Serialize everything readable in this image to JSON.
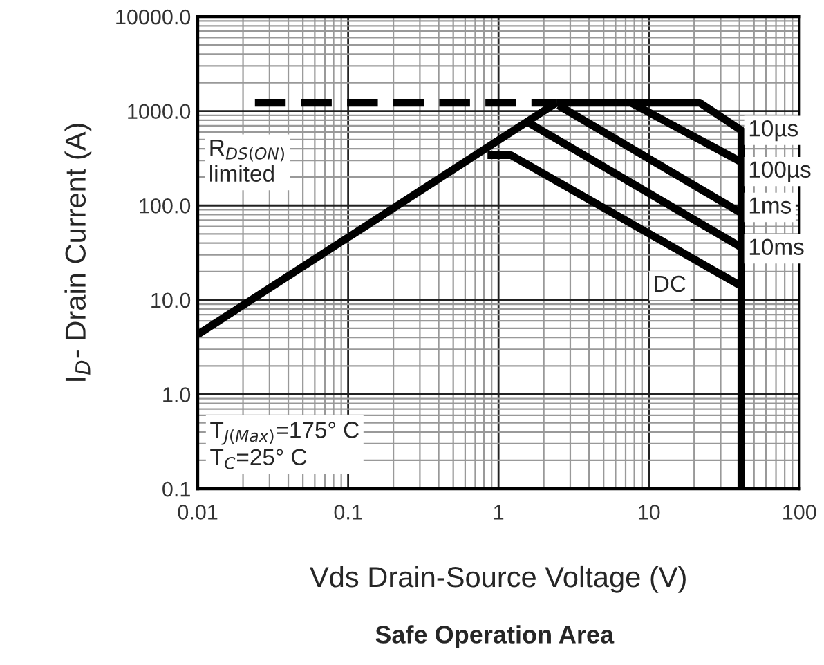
{
  "chart_data": {
    "type": "line",
    "title": "Safe Operation Area",
    "xlabel": "Vds Drain-Source Voltage (V)",
    "ylabel": "I$_{D}$- Drain Current (A)",
    "log": "xy",
    "grid": true,
    "legend": false,
    "marker": "none",
    "xlim": [
      0.01,
      100
    ],
    "xticks": [
      0.01,
      0.1,
      1,
      10,
      100
    ],
    "ylim": [
      0.1,
      10000
    ],
    "yticks": [
      {
        "value": 0.1,
        "label": "0.1"
      },
      {
        "value": 1,
        "label": "1.0"
      },
      {
        "value": 10,
        "label": "10.0"
      },
      {
        "value": 100,
        "label": "100.0"
      },
      {
        "value": 1000,
        "label": "1000.0"
      },
      {
        "value": 10000,
        "label": "10000.0"
      }
    ],
    "series": [
      {
        "color": "#000000",
        "x": [
          0.01,
          2.43
        ],
        "values": [
          4.3,
          1225
        ]
      },
      {
        "color": "#000000",
        "x": [
          0.024,
          2.43
        ],
        "values": [
          1225,
          1225
        ],
        "line_style": "dashed"
      },
      {
        "color": "#000000",
        "x": [
          2.43,
          21.8,
          41.2,
          41.2
        ],
        "values": [
          1225,
          1225,
          625,
          0.1
        ]
      },
      {
        "color": "#000000",
        "x": [
          7.6,
          41.2
        ],
        "values": [
          1225,
          288
        ]
      },
      {
        "color": "#000000",
        "x": [
          2.5,
          41.2
        ],
        "values": [
          1150,
          83
        ]
      },
      {
        "color": "#000000",
        "x": [
          1.59,
          41.2
        ],
        "values": [
          750,
          36
        ]
      },
      {
        "color": "#000000",
        "x": [
          0.845,
          1.21,
          41.2
        ],
        "values": [
          341,
          341,
          14
        ]
      }
    ],
    "annotations": [
      "10µs",
      "100µs",
      "1ms",
      "10ms",
      "DC",
      "R$_{DS(ON)}$\nlimited",
      "T$_{J(Max)}$=175° C\nT$_{C}$=25° C"
    ]
  }
}
